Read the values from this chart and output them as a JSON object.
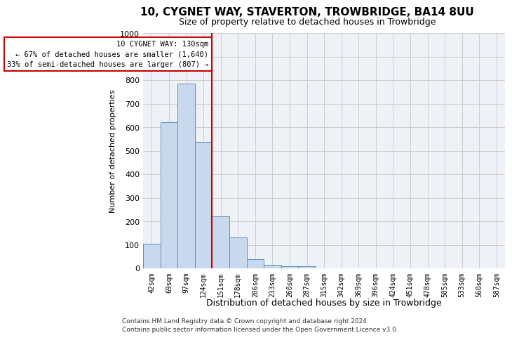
{
  "title": "10, CYGNET WAY, STAVERTON, TROWBRIDGE, BA14 8UU",
  "subtitle": "Size of property relative to detached houses in Trowbridge",
  "xlabel": "Distribution of detached houses by size in Trowbridge",
  "ylabel": "Number of detached properties",
  "footer_line1": "Contains HM Land Registry data © Crown copyright and database right 2024.",
  "footer_line2": "Contains public sector information licensed under the Open Government Licence v3.0.",
  "categories": [
    "42sqm",
    "69sqm",
    "97sqm",
    "124sqm",
    "151sqm",
    "178sqm",
    "206sqm",
    "233sqm",
    "260sqm",
    "287sqm",
    "315sqm",
    "342sqm",
    "369sqm",
    "396sqm",
    "424sqm",
    "451sqm",
    "478sqm",
    "505sqm",
    "533sqm",
    "560sqm",
    "587sqm"
  ],
  "values": [
    103,
    622,
    785,
    537,
    220,
    132,
    40,
    15,
    10,
    10,
    0,
    0,
    0,
    0,
    0,
    0,
    0,
    0,
    0,
    0,
    0
  ],
  "bar_color": "#c9d9ed",
  "bar_edge_color": "#5b8db8",
  "grid_color": "#cccccc",
  "bg_color": "#eef2f7",
  "marker_label": "10 CYGNET WAY: 130sqm",
  "annotation_line1": "← 67% of detached houses are smaller (1,640)",
  "annotation_line2": "33% of semi-detached houses are larger (807) →",
  "marker_color": "#cc0000",
  "annotation_box_color": "#ffffff",
  "annotation_box_edge": "#cc0000",
  "ylim": [
    0,
    1000
  ],
  "yticks": [
    0,
    100,
    200,
    300,
    400,
    500,
    600,
    700,
    800,
    900,
    1000
  ]
}
